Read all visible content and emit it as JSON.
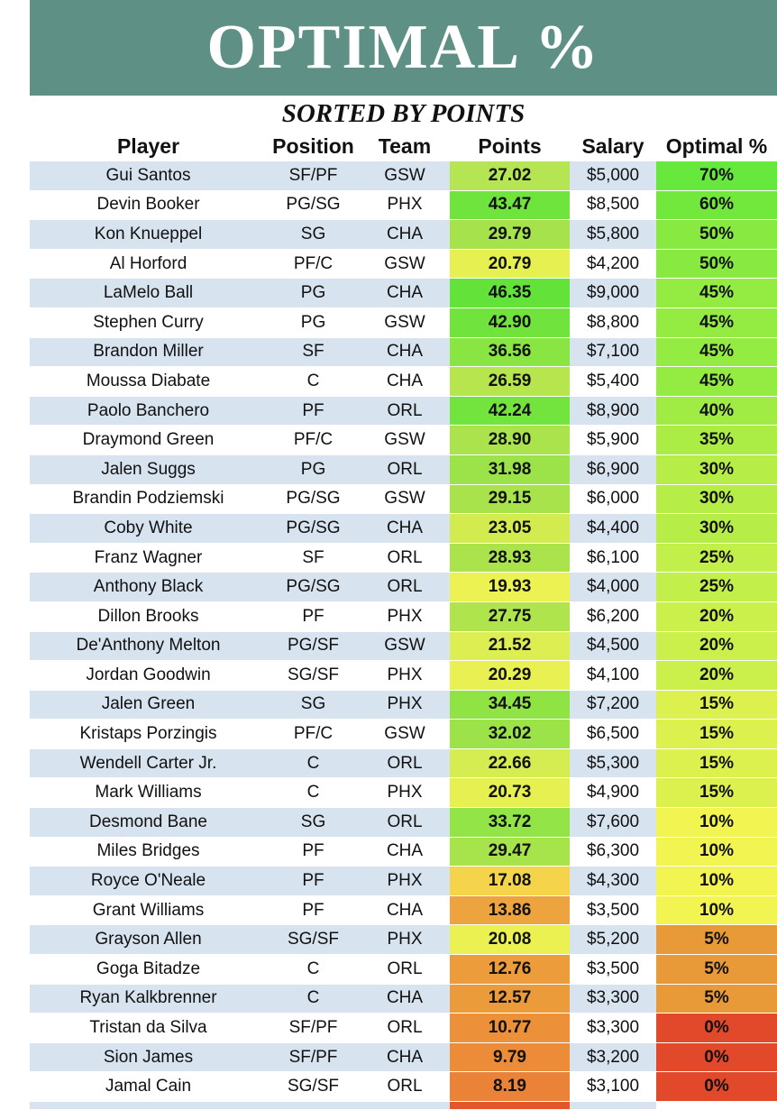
{
  "header": {
    "title": "OPTIMAL %",
    "subtitle": "SORTED BY POINTS"
  },
  "columns": [
    "Player",
    "Position",
    "Team",
    "Points",
    "Salary",
    "Optimal %"
  ],
  "rows": [
    {
      "player": "Gui Santos",
      "position": "SF/PF",
      "team": "GSW",
      "points": "27.02",
      "salary": "$5,000",
      "optimal": "70%",
      "points_color": "#b5e553",
      "optimal_color": "#66e83c"
    },
    {
      "player": "Devin Booker",
      "position": "PG/SG",
      "team": "PHX",
      "points": "43.47",
      "salary": "$8,500",
      "optimal": "60%",
      "points_color": "#6ee43c",
      "optimal_color": "#73e83c"
    },
    {
      "player": "Kon Knueppel",
      "position": "SG",
      "team": "CHA",
      "points": "29.79",
      "salary": "$5,800",
      "optimal": "50%",
      "points_color": "#a5e24c",
      "optimal_color": "#88ea40"
    },
    {
      "player": "Al Horford",
      "position": "PF/C",
      "team": "GSW",
      "points": "20.79",
      "salary": "$4,200",
      "optimal": "50%",
      "points_color": "#e6f151",
      "optimal_color": "#88ea40"
    },
    {
      "player": "LaMelo Ball",
      "position": "PG",
      "team": "CHA",
      "points": "46.35",
      "salary": "$9,000",
      "optimal": "45%",
      "points_color": "#63e23a",
      "optimal_color": "#94eb42"
    },
    {
      "player": "Stephen Curry",
      "position": "PG",
      "team": "GSW",
      "points": "42.90",
      "salary": "$8,800",
      "optimal": "45%",
      "points_color": "#70e33d",
      "optimal_color": "#94eb42"
    },
    {
      "player": "Brandon Miller",
      "position": "SF",
      "team": "CHA",
      "points": "36.56",
      "salary": "$7,100",
      "optimal": "45%",
      "points_color": "#88e542",
      "optimal_color": "#94eb42"
    },
    {
      "player": "Moussa Diabate",
      "position": "C",
      "team": "CHA",
      "points": "26.59",
      "salary": "$5,400",
      "optimal": "45%",
      "points_color": "#b7e54d",
      "optimal_color": "#94eb42"
    },
    {
      "player": "Paolo Banchero",
      "position": "PF",
      "team": "ORL",
      "points": "42.24",
      "salary": "$8,900",
      "optimal": "40%",
      "points_color": "#73e33e",
      "optimal_color": "#a0ec44"
    },
    {
      "player": "Draymond Green",
      "position": "PF/C",
      "team": "GSW",
      "points": "28.90",
      "salary": "$5,900",
      "optimal": "35%",
      "points_color": "#aae34b",
      "optimal_color": "#abed45"
    },
    {
      "player": "Jalen Suggs",
      "position": "PG",
      "team": "ORL",
      "points": "31.98",
      "salary": "$6,900",
      "optimal": "30%",
      "points_color": "#9be348",
      "optimal_color": "#b6ee47"
    },
    {
      "player": "Brandin Podziemski",
      "position": "PG/SG",
      "team": "GSW",
      "points": "29.15",
      "salary": "$6,000",
      "optimal": "30%",
      "points_color": "#a9e34b",
      "optimal_color": "#b6ee47"
    },
    {
      "player": "Coby White",
      "position": "PG/SG",
      "team": "CHA",
      "points": "23.05",
      "salary": "$4,400",
      "optimal": "30%",
      "points_color": "#d2ec50",
      "optimal_color": "#b6ee47"
    },
    {
      "player": "Franz Wagner",
      "position": "SF",
      "team": "ORL",
      "points": "28.93",
      "salary": "$6,100",
      "optimal": "25%",
      "points_color": "#aae34b",
      "optimal_color": "#c2ef49"
    },
    {
      "player": "Anthony Black",
      "position": "PG/SG",
      "team": "ORL",
      "points": "19.93",
      "salary": "$4,000",
      "optimal": "25%",
      "points_color": "#ecf252",
      "optimal_color": "#c2ef49"
    },
    {
      "player": "Dillon Brooks",
      "position": "PF",
      "team": "PHX",
      "points": "27.75",
      "salary": "$6,200",
      "optimal": "20%",
      "points_color": "#b0e44c",
      "optimal_color": "#ccf04b"
    },
    {
      "player": "De'Anthony Melton",
      "position": "PG/SF",
      "team": "GSW",
      "points": "21.52",
      "salary": "$4,500",
      "optimal": "20%",
      "points_color": "#dcee51",
      "optimal_color": "#ccf04b"
    },
    {
      "player": "Jordan Goodwin",
      "position": "SG/SF",
      "team": "PHX",
      "points": "20.29",
      "salary": "$4,100",
      "optimal": "20%",
      "points_color": "#e8f151",
      "optimal_color": "#ccf04b"
    },
    {
      "player": "Jalen Green",
      "position": "SG",
      "team": "PHX",
      "points": "34.45",
      "salary": "$7,200",
      "optimal": "15%",
      "points_color": "#8fe444",
      "optimal_color": "#dcf14e"
    },
    {
      "player": "Kristaps Porzingis",
      "position": "PF/C",
      "team": "GSW",
      "points": "32.02",
      "salary": "$6,500",
      "optimal": "15%",
      "points_color": "#9be348",
      "optimal_color": "#dcf14e"
    },
    {
      "player": "Wendell Carter Jr.",
      "position": "C",
      "team": "ORL",
      "points": "22.66",
      "salary": "$5,300",
      "optimal": "15%",
      "points_color": "#d5ed50",
      "optimal_color": "#dcf14e"
    },
    {
      "player": "Mark Williams",
      "position": "C",
      "team": "PHX",
      "points": "20.73",
      "salary": "$4,900",
      "optimal": "15%",
      "points_color": "#e6f151",
      "optimal_color": "#dcf14e"
    },
    {
      "player": "Desmond Bane",
      "position": "SG",
      "team": "ORL",
      "points": "33.72",
      "salary": "$7,600",
      "optimal": "10%",
      "points_color": "#93e446",
      "optimal_color": "#f2f451"
    },
    {
      "player": "Miles Bridges",
      "position": "PF",
      "team": "CHA",
      "points": "29.47",
      "salary": "$6,300",
      "optimal": "10%",
      "points_color": "#a7e34b",
      "optimal_color": "#f2f451"
    },
    {
      "player": "Royce O'Neale",
      "position": "PF",
      "team": "PHX",
      "points": "17.08",
      "salary": "$4,300",
      "optimal": "10%",
      "points_color": "#f5d34b",
      "optimal_color": "#f2f451"
    },
    {
      "player": "Grant Williams",
      "position": "PF",
      "team": "CHA",
      "points": "13.86",
      "salary": "$3,500",
      "optimal": "10%",
      "points_color": "#eda43e",
      "optimal_color": "#f2f451"
    },
    {
      "player": "Grayson Allen",
      "position": "SG/SF",
      "team": "PHX",
      "points": "20.08",
      "salary": "$5,200",
      "optimal": "5%",
      "points_color": "#eaf151",
      "optimal_color": "#e99a38"
    },
    {
      "player": "Goga Bitadze",
      "position": "C",
      "team": "ORL",
      "points": "12.76",
      "salary": "$3,500",
      "optimal": "5%",
      "points_color": "#ec9c3b",
      "optimal_color": "#e99a38"
    },
    {
      "player": "Ryan Kalkbrenner",
      "position": "C",
      "team": "CHA",
      "points": "12.57",
      "salary": "$3,300",
      "optimal": "5%",
      "points_color": "#ec9b3b",
      "optimal_color": "#e99a38"
    },
    {
      "player": "Tristan da Silva",
      "position": "SF/PF",
      "team": "ORL",
      "points": "10.77",
      "salary": "$3,300",
      "optimal": "0%",
      "points_color": "#ec903a",
      "optimal_color": "#e2492a"
    },
    {
      "player": "Sion James",
      "position": "SF/PF",
      "team": "CHA",
      "points": "9.79",
      "salary": "$3,200",
      "optimal": "0%",
      "points_color": "#ec8c39",
      "optimal_color": "#e2492a"
    },
    {
      "player": "Jamal Cain",
      "position": "SG/SF",
      "team": "ORL",
      "points": "8.19",
      "salary": "$3,100",
      "optimal": "0%",
      "points_color": "#ea8338",
      "optimal_color": "#e2492a"
    }
  ],
  "tail_row": {
    "points_color": "#e4552c",
    "optimal_color": "#ffffff"
  }
}
